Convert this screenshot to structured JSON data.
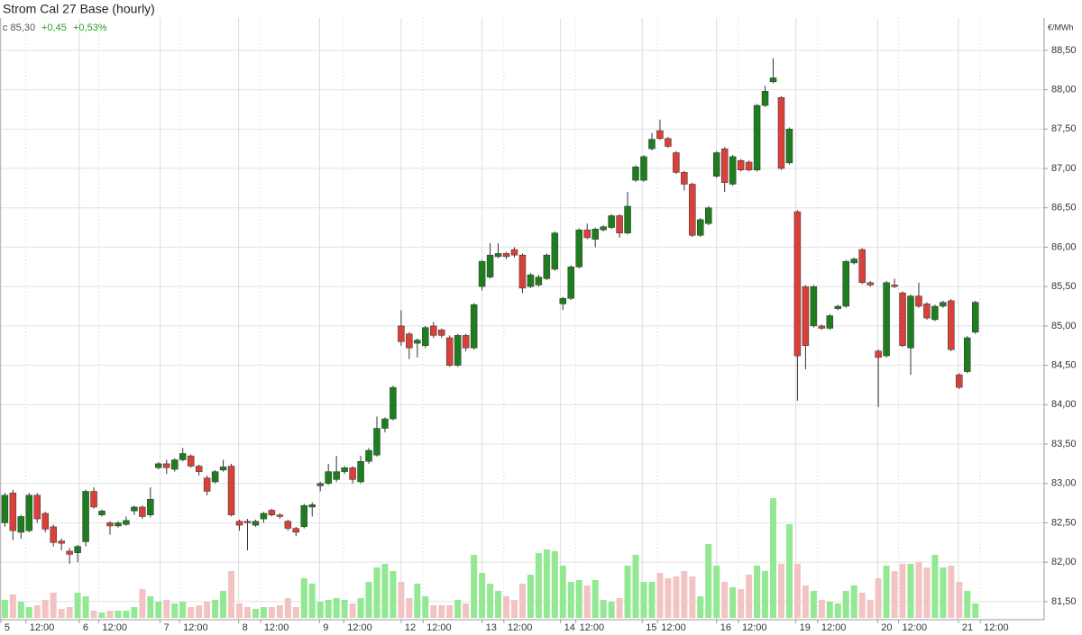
{
  "chart_data": {
    "type": "candlestick",
    "title": "Strom Cal 27 Base (hourly)",
    "last": "c 85,30",
    "change": "+0,45",
    "change_pct": "+0,53%",
    "y_unit": "€/MWh",
    "up_color": "#1e7d1e",
    "down_color": "#d8403a",
    "volume_up_color": "#93e893",
    "volume_down_color": "#f2c3c3",
    "grid": true,
    "xlim": [
      -0.6,
      128.5
    ],
    "ylim": [
      81.27,
      88.91
    ],
    "vlim": [
      0,
      150
    ],
    "yticks": [
      {
        "value": 81.5,
        "label": "81,50"
      },
      {
        "value": 82,
        "label": "82,00"
      },
      {
        "value": 82.5,
        "label": "82,50"
      },
      {
        "value": 83,
        "label": "83,00"
      },
      {
        "value": 83.5,
        "label": "83,50"
      },
      {
        "value": 84,
        "label": "84,00"
      },
      {
        "value": 84.5,
        "label": "84,50"
      },
      {
        "value": 85,
        "label": "85,00"
      },
      {
        "value": 85.5,
        "label": "85,50"
      },
      {
        "value": 86,
        "label": "86,00"
      },
      {
        "value": 86.5,
        "label": "86,50"
      },
      {
        "value": 87,
        "label": "87,00"
      },
      {
        "value": 87.5,
        "label": "87,50"
      },
      {
        "value": 88,
        "label": "88,00"
      },
      {
        "value": 88.5,
        "label": "88,50"
      }
    ],
    "xticks": [
      {
        "value": -0.5,
        "label": "5"
      },
      {
        "value": 9.2,
        "label": "6"
      },
      {
        "value": 19.2,
        "label": "7"
      },
      {
        "value": 28.9,
        "label": "8"
      },
      {
        "value": 38.9,
        "label": "9"
      },
      {
        "value": 49,
        "label": "12"
      },
      {
        "value": 59,
        "label": "13"
      },
      {
        "value": 68.7,
        "label": "14"
      },
      {
        "value": 78.8,
        "label": "15"
      },
      {
        "value": 88,
        "label": "16"
      },
      {
        "value": 97.8,
        "label": "19"
      },
      {
        "value": 107.9,
        "label": "20"
      },
      {
        "value": 117.9,
        "label": "21"
      }
    ],
    "xticks_minor": [
      {
        "value": 2.6,
        "label": "12:00"
      },
      {
        "value": 11.6,
        "label": "12:00"
      },
      {
        "value": 21.6,
        "label": "12:00"
      },
      {
        "value": 31.6,
        "label": "12:00"
      },
      {
        "value": 41.9,
        "label": "12:00"
      },
      {
        "value": 51.7,
        "label": "12:00"
      },
      {
        "value": 61.7,
        "label": "12:00"
      },
      {
        "value": 70.6,
        "label": "12:00"
      },
      {
        "value": 80.7,
        "label": "12:00"
      },
      {
        "value": 90.7,
        "label": "12:00"
      },
      {
        "value": 100.5,
        "label": "12:00"
      },
      {
        "value": 110.5,
        "label": "12:00"
      },
      {
        "value": 120.6,
        "label": "12:00"
      }
    ],
    "open": [
      82.5,
      82.88,
      82.38,
      82.4,
      82.85,
      82.62,
      82.45,
      82.27,
      82.14,
      82.12,
      82.26,
      82.9,
      82.6,
      82.5,
      82.46,
      82.48,
      82.65,
      82.7,
      82.6,
      83.2,
      83.25,
      83.18,
      83.3,
      83.35,
      83.22,
      83.07,
      83.02,
      83.17,
      83.22,
      82.52,
      82.52,
      82.47,
      82.55,
      82.66,
      82.6,
      82.52,
      82.43,
      82.45,
      82.7,
      82.97,
      83.0,
      83.05,
      83.15,
      83.2,
      83.02,
      83.28,
      83.36,
      83.7,
      83.82,
      85.0,
      84.9,
      84.78,
      84.75,
      85.0,
      84.95,
      84.85,
      84.5,
      84.88,
      84.72,
      85.5,
      85.62,
      85.88,
      85.92,
      85.97,
      85.9,
      85.5,
      85.52,
      85.6,
      85.72,
      85.28,
      85.35,
      85.75,
      86.22,
      86.1,
      86.22,
      86.25,
      86.4,
      86.18,
      86.85,
      86.85,
      87.25,
      87.48,
      87.38,
      87.2,
      86.95,
      86.8,
      86.15,
      86.3,
      86.9,
      87.25,
      86.8,
      87.1,
      87.08,
      86.98,
      87.8,
      88.1,
      87.9,
      87.07,
      86.45,
      85.5,
      85.0,
      85.0,
      84.97,
      85.22,
      85.25,
      85.8,
      85.97,
      85.55,
      84.68,
      84.62,
      85.52,
      85.42,
      84.72,
      85.38,
      85.28,
      85.08,
      85.25,
      85.32,
      84.38,
      84.42,
      84.92
    ],
    "high": [
      82.88,
      82.92,
      82.6,
      82.88,
      82.88,
      82.64,
      82.48,
      82.3,
      82.18,
      82.22,
      82.92,
      82.95,
      82.67,
      82.52,
      82.52,
      82.58,
      82.72,
      82.72,
      82.95,
      83.27,
      83.3,
      83.32,
      83.45,
      83.37,
      83.24,
      83.1,
      83.17,
      83.3,
      83.25,
      82.54,
      82.55,
      82.54,
      82.64,
      82.68,
      82.62,
      82.54,
      82.45,
      82.74,
      82.76,
      83.02,
      83.25,
      83.35,
      83.22,
      83.22,
      83.35,
      83.45,
      83.85,
      83.84,
      84.24,
      85.2,
      84.92,
      84.84,
      85.0,
      85.05,
      84.97,
      84.88,
      84.9,
      84.9,
      85.29,
      85.84,
      86.05,
      86.05,
      85.94,
      86.0,
      85.92,
      85.67,
      85.65,
      85.92,
      86.2,
      85.37,
      85.77,
      86.24,
      86.3,
      86.25,
      86.28,
      86.42,
      86.42,
      86.7,
      87.04,
      87.17,
      87.45,
      87.62,
      87.4,
      87.22,
      86.97,
      86.82,
      86.37,
      86.52,
      87.22,
      87.27,
      87.17,
      87.12,
      87.1,
      87.82,
      88.05,
      88.4,
      87.92,
      87.52,
      86.47,
      85.52,
      85.52,
      85.02,
      85.15,
      85.27,
      85.84,
      85.87,
      85.99,
      85.57,
      84.7,
      85.57,
      85.6,
      85.44,
      85.4,
      85.55,
      85.3,
      85.27,
      85.32,
      85.34,
      84.4,
      84.87,
      85.32
    ],
    "low": [
      82.45,
      82.28,
      82.3,
      82.38,
      82.5,
      82.38,
      82.2,
      82.15,
      81.98,
      82.0,
      82.2,
      82.68,
      82.58,
      82.35,
      82.44,
      82.46,
      82.6,
      82.55,
      82.57,
      83.18,
      83.12,
      83.15,
      83.28,
      83.2,
      83.1,
      82.85,
      83.0,
      83.15,
      82.58,
      82.4,
      82.15,
      82.45,
      82.5,
      82.58,
      82.55,
      82.4,
      82.33,
      82.43,
      82.58,
      82.9,
      82.98,
      83.02,
      83.12,
      83.0,
      83.0,
      83.25,
      83.34,
      83.65,
      83.8,
      84.75,
      84.58,
      84.6,
      84.72,
      84.85,
      84.85,
      84.48,
      84.48,
      84.68,
      84.7,
      85.45,
      85.6,
      85.86,
      85.85,
      85.87,
      85.42,
      85.48,
      85.5,
      85.58,
      85.7,
      85.2,
      85.33,
      85.73,
      86.1,
      86.0,
      86.2,
      86.23,
      86.12,
      86.16,
      86.83,
      86.83,
      87.23,
      87.36,
      87.26,
      86.93,
      86.72,
      86.13,
      86.13,
      86.28,
      86.88,
      86.7,
      86.78,
      86.96,
      86.96,
      86.96,
      87.78,
      88.08,
      86.98,
      87.05,
      84.05,
      84.45,
      84.98,
      84.95,
      84.95,
      85.2,
      85.23,
      85.78,
      85.53,
      85.5,
      83.97,
      84.6,
      85.48,
      84.73,
      84.38,
      85.23,
      85.08,
      85.06,
      85.23,
      84.68,
      84.2,
      84.4,
      84.9
    ],
    "close": [
      82.85,
      82.4,
      82.58,
      82.85,
      82.55,
      82.42,
      82.25,
      82.24,
      82.1,
      82.2,
      82.9,
      82.7,
      82.65,
      82.46,
      82.5,
      82.53,
      82.7,
      82.58,
      82.8,
      83.25,
      83.2,
      83.3,
      83.38,
      83.22,
      83.15,
      82.9,
      83.15,
      83.21,
      82.6,
      82.47,
      82.5,
      82.52,
      82.62,
      82.6,
      82.58,
      82.43,
      82.38,
      82.72,
      82.73,
      83.0,
      83.15,
      83.15,
      83.2,
      83.05,
      83.28,
      83.42,
      83.7,
      83.82,
      84.22,
      84.8,
      84.72,
      84.82,
      84.98,
      84.88,
      84.88,
      84.5,
      84.88,
      84.72,
      85.27,
      85.82,
      85.9,
      85.92,
      85.88,
      85.9,
      85.48,
      85.65,
      85.62,
      85.9,
      86.18,
      85.35,
      85.75,
      86.22,
      86.12,
      86.23,
      86.26,
      86.4,
      86.18,
      86.52,
      87.02,
      87.15,
      87.37,
      87.38,
      87.28,
      86.95,
      86.8,
      86.15,
      86.35,
      86.5,
      87.2,
      86.82,
      87.15,
      86.98,
      86.98,
      87.8,
      87.98,
      88.15,
      87.0,
      87.5,
      84.62,
      84.75,
      85.5,
      84.97,
      85.13,
      85.25,
      85.82,
      85.85,
      85.55,
      85.52,
      84.6,
      85.55,
      85.5,
      84.75,
      85.38,
      85.25,
      85.1,
      85.25,
      85.3,
      84.7,
      84.22,
      84.85,
      85.3
    ],
    "volume": [
      20,
      26,
      18,
      12,
      14,
      20,
      28,
      10,
      12,
      28,
      24,
      8,
      6,
      8,
      8,
      8,
      12,
      32,
      24,
      18,
      20,
      16,
      18,
      12,
      14,
      18,
      20,
      30,
      52,
      16,
      12,
      10,
      12,
      12,
      14,
      22,
      12,
      44,
      38,
      18,
      20,
      22,
      20,
      16,
      22,
      40,
      56,
      60,
      52,
      40,
      22,
      38,
      24,
      14,
      14,
      14,
      20,
      16,
      70,
      50,
      38,
      30,
      24,
      20,
      38,
      48,
      72,
      76,
      74,
      58,
      40,
      42,
      36,
      42,
      20,
      18,
      22,
      58,
      70,
      40,
      40,
      50,
      44,
      46,
      52,
      46,
      24,
      82,
      58,
      40,
      34,
      32,
      48,
      58,
      52,
      133,
      60,
      104,
      60,
      36,
      30,
      20,
      18,
      16,
      30,
      36,
      28,
      20,
      44,
      58,
      52,
      60,
      60,
      62,
      56,
      70,
      56,
      58,
      40,
      30,
      16
    ]
  }
}
